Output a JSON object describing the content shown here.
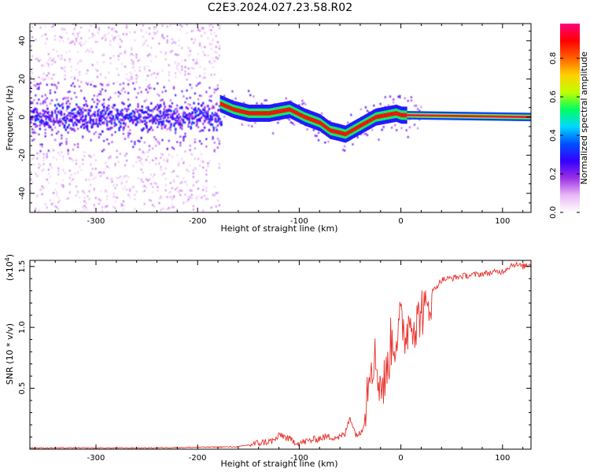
{
  "title": "C2E3.2024.027.23.58.R02",
  "chart_data": [
    {
      "type": "heatmap",
      "xlabel": "Height of straight line (km)",
      "ylabel": "Frequency (Hz)",
      "xlim": [
        -365,
        128
      ],
      "ylim": [
        -50,
        49
      ],
      "xticks": [
        -300,
        -200,
        -100,
        0,
        100
      ],
      "yticks": [
        -40,
        -20,
        0,
        20,
        40
      ],
      "colorbar": {
        "label": "Normalized spectral amplitude",
        "ticks": [
          "0.0",
          "0.2",
          "0.4",
          "0.6",
          "0.8"
        ],
        "colors": [
          "#ffffff",
          "#e9b8f5",
          "#9b30e6",
          "#3300ff",
          "#0050ff",
          "#00d8ff",
          "#00ff60",
          "#c0ff00",
          "#ffd000",
          "#ff6000",
          "#ff0000",
          "#ff0080"
        ]
      },
      "ridge": {
        "x": [
          -178,
          -165,
          -150,
          -130,
          -110,
          -95,
          -80,
          -70,
          -62,
          -55,
          -45,
          -35,
          -25,
          -15,
          -5,
          0,
          128
        ],
        "y": [
          7,
          4,
          2,
          2,
          4,
          0,
          -3,
          -7,
          -8,
          -9,
          -6,
          -3,
          0,
          1,
          2,
          1,
          0
        ]
      }
    },
    {
      "type": "line",
      "xlabel": "Height of straight line (km)",
      "ylabel": "SNR (10 * v/v)",
      "multiplier": "(x10",
      "multiplier_exp": "4",
      "multiplier_close": ")",
      "xlim": [
        -365,
        128
      ],
      "ylim": [
        0,
        1.55
      ],
      "xticks": [
        -300,
        -200,
        -100,
        0,
        100
      ],
      "yticks": [
        "0.5",
        "1.0",
        "1.5"
      ],
      "series": [
        {
          "color": "#e8302a",
          "x": [
            -365,
            -250,
            -160,
            -140,
            -125,
            -118,
            -110,
            -100,
            -90,
            -75,
            -60,
            -55,
            -50,
            -45,
            -40,
            -36,
            -33,
            -30,
            -25,
            -20,
            -15,
            -10,
            -5,
            0,
            5,
            10,
            15,
            20,
            25,
            30,
            40,
            60,
            80,
            100,
            110,
            120,
            128
          ],
          "y": [
            0.01,
            0.01,
            0.02,
            0.05,
            0.07,
            0.12,
            0.08,
            0.05,
            0.07,
            0.1,
            0.1,
            0.12,
            0.27,
            0.13,
            0.12,
            0.23,
            0.52,
            0.75,
            0.73,
            0.52,
            0.56,
            0.87,
            0.9,
            1.04,
            0.94,
            1.11,
            1.0,
            1.16,
            1.1,
            1.28,
            1.39,
            1.42,
            1.44,
            1.46,
            1.52,
            1.5,
            1.52
          ]
        }
      ]
    }
  ]
}
